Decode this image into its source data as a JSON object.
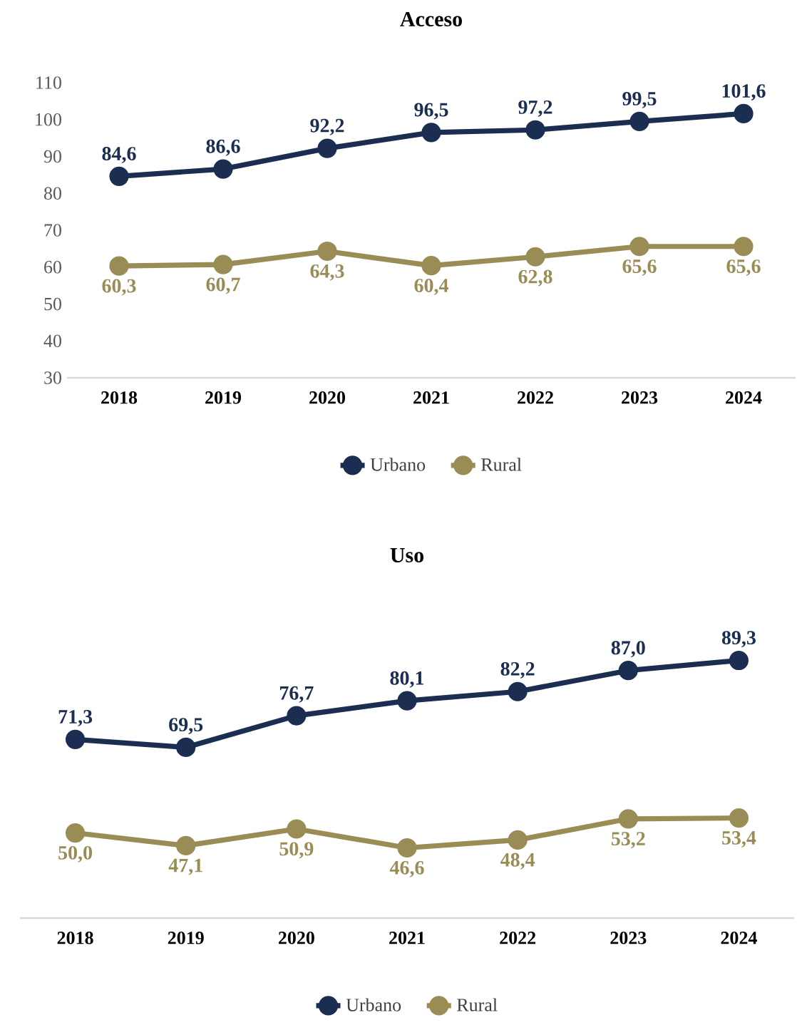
{
  "chart_data": [
    {
      "type": "line",
      "title": "Acceso",
      "categories": [
        "2018",
        "2019",
        "2020",
        "2021",
        "2022",
        "2023",
        "2024"
      ],
      "series": [
        {
          "name": "Urbano",
          "color": "#1b2e52",
          "values": [
            84.6,
            86.6,
            92.2,
            96.5,
            97.2,
            99.5,
            101.6
          ],
          "value_labels": [
            "84,6",
            "86,6",
            "92,2",
            "96,5",
            "97,2",
            "99,5",
            "101,6"
          ]
        },
        {
          "name": "Rural",
          "color": "#9a8c55",
          "values": [
            60.3,
            60.7,
            64.3,
            60.4,
            62.8,
            65.6,
            65.6
          ],
          "value_labels": [
            "60,3",
            "60,7",
            "64,3",
            "60,4",
            "62,8",
            "65,6",
            "65,6"
          ]
        }
      ],
      "ylim": [
        30,
        110
      ],
      "yticks": [
        30,
        40,
        50,
        60,
        70,
        80,
        90,
        100,
        110
      ],
      "grid": false,
      "legend": "bottom",
      "marker": "circle",
      "line_style": "solid"
    },
    {
      "type": "line",
      "title": "Uso",
      "categories": [
        "2018",
        "2019",
        "2020",
        "2021",
        "2022",
        "2023",
        "2024"
      ],
      "series": [
        {
          "name": "Urbano",
          "color": "#1b2e52",
          "values": [
            71.3,
            69.5,
            76.7,
            80.1,
            82.2,
            87.0,
            89.3
          ],
          "value_labels": [
            "71,3",
            "69,5",
            "76,7",
            "80,1",
            "82,2",
            "87,0",
            "89,3"
          ]
        },
        {
          "name": "Rural",
          "color": "#9a8c55",
          "values": [
            50.0,
            47.1,
            50.9,
            46.6,
            48.4,
            53.2,
            53.4
          ],
          "value_labels": [
            "50,0",
            "47,1",
            "50,9",
            "46,6",
            "48,4",
            "53,2",
            "53,4"
          ]
        }
      ],
      "tick_labels": "x",
      "grid": false,
      "legend": "bottom",
      "marker": "circle",
      "line_style": "solid"
    }
  ]
}
